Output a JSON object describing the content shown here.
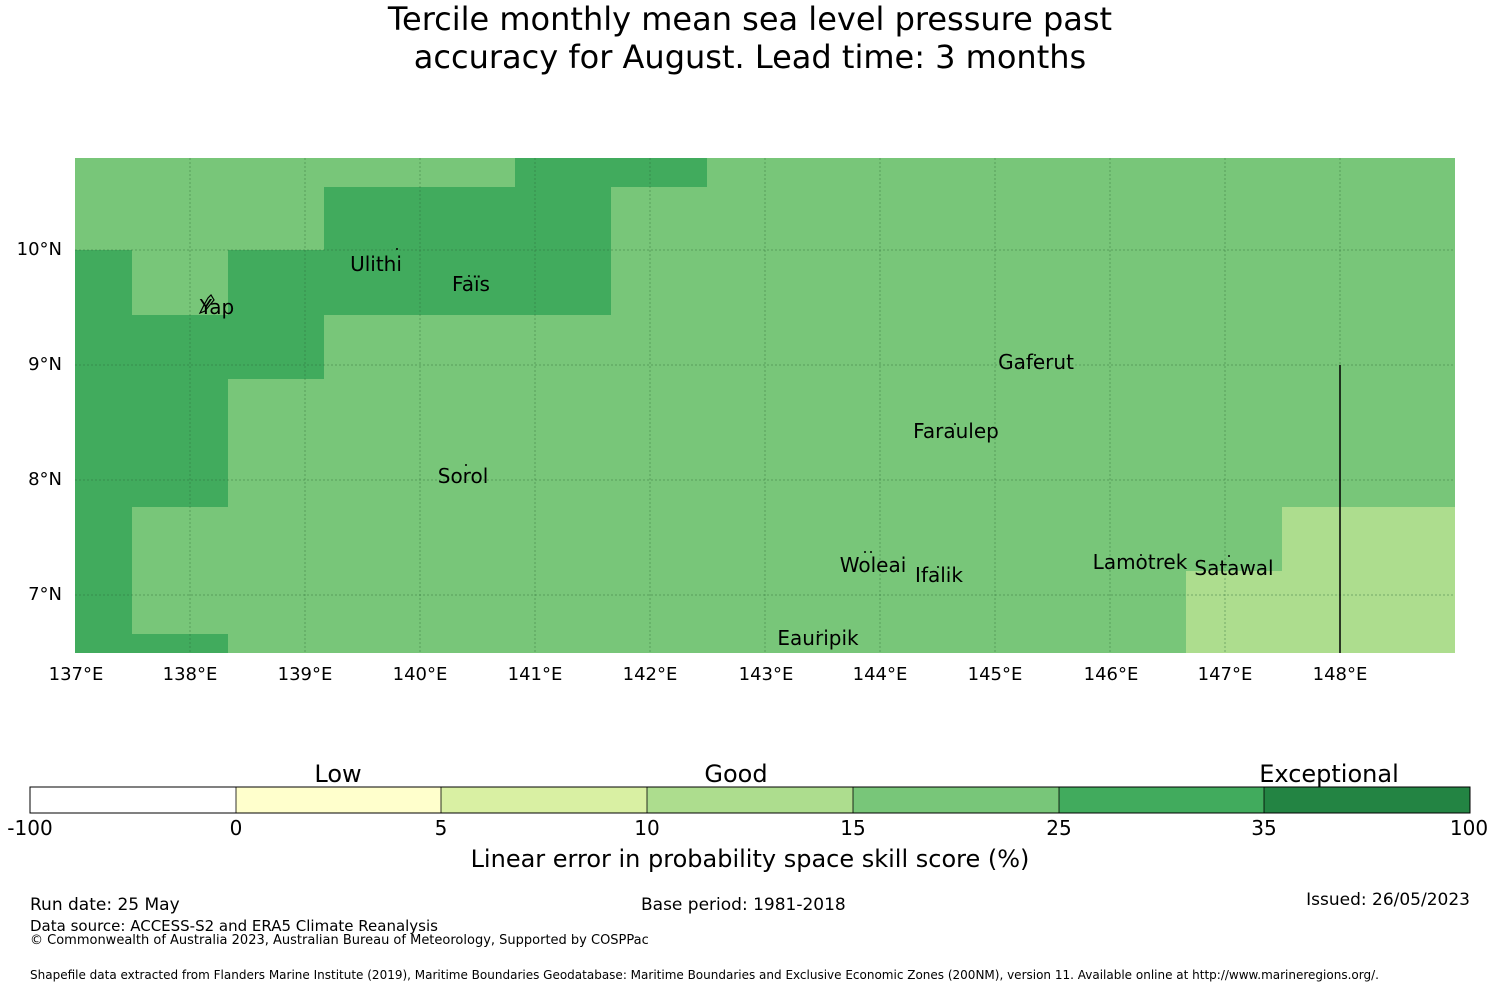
{
  "title": {
    "line1": "Tercile monthly mean sea level pressure past",
    "line2": "accuracy for August. Lead time: 3 months"
  },
  "colors": {
    "band_minus100_0": "#ffffff",
    "band_0_5": "#ffffcc",
    "band_5_10": "#d9f0a3",
    "band_10_15": "#addd8e",
    "band_15_25": "#78c679",
    "band_25_35": "#41ab5d",
    "band_35_100": "#238443"
  },
  "map": {
    "lat_labels": [
      "10°N",
      "9°N",
      "8°N",
      "7°N"
    ],
    "lon_labels": [
      "137°E",
      "138°E",
      "139°E",
      "140°E",
      "141°E",
      "142°E",
      "143°E",
      "144°E",
      "145°E",
      "146°E",
      "147°E",
      "148°E"
    ],
    "places": [
      "Ulithi",
      "Faïs",
      "Yap",
      "Gaferut",
      "Faraulep",
      "Sorol",
      "Woleai",
      "Ifalik",
      "Lamotrek",
      "Satawal",
      "Eauripik"
    ]
  },
  "colorbar": {
    "categories": [
      "Low",
      "Good",
      "Exceptional"
    ],
    "ticks": [
      "-100",
      "0",
      "5",
      "10",
      "15",
      "25",
      "35",
      "100"
    ],
    "label": "Linear error in probability space skill score (%)"
  },
  "footer": {
    "run_date": "Run date: 25 May",
    "base_period": "Base period: 1981-2018",
    "issued": "Issued: 26/05/2023",
    "data_source": "Data source: ACCESS-S2 and ERA5 Climate Reanalysis",
    "copyright": "© Commonwealth of Australia 2023, Australian Bureau of Meteorology, Supported by COSPPac",
    "shapefile": "Shapefile data extracted from Flanders Marine Institute (2019), Maritime Boundaries Geodatabase: Maritime Boundaries and Exclusive Economic Zones (200NM), version 11. Available online at http://www.marineregions.org/."
  }
}
